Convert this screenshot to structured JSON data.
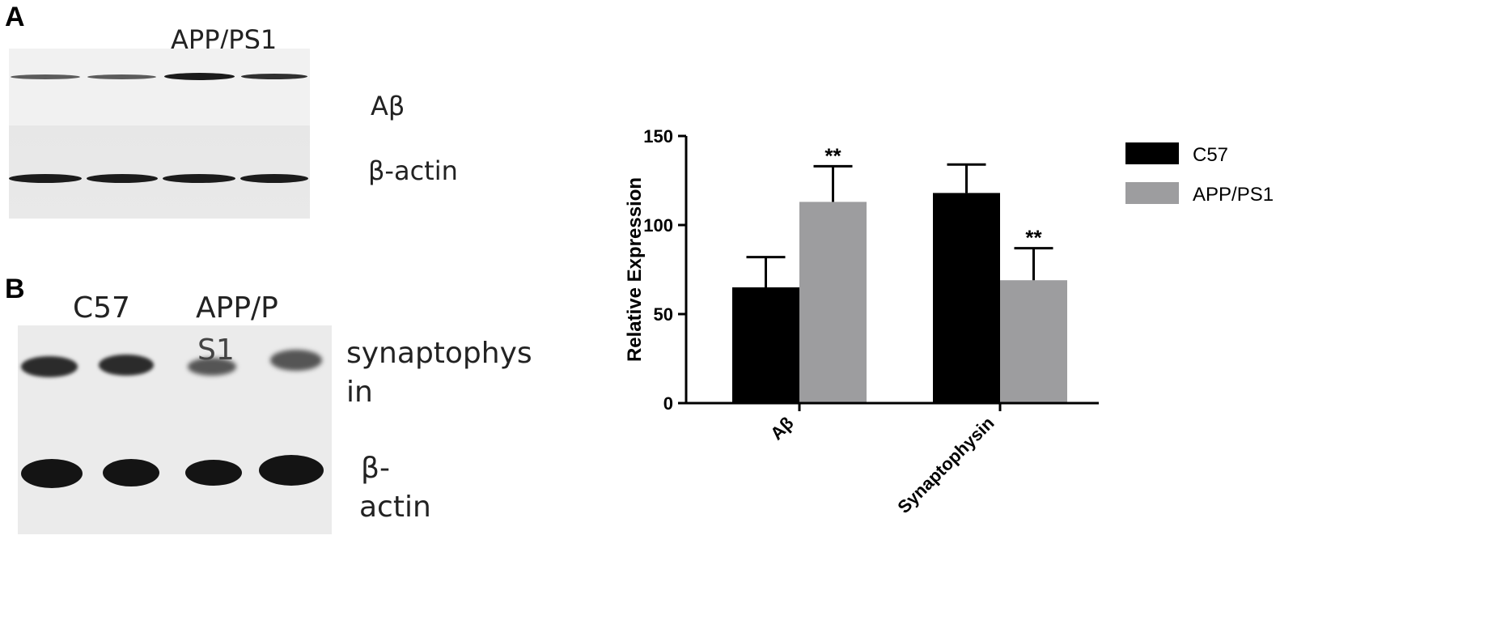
{
  "panels": {
    "a": {
      "letter": "A",
      "group_label": "APP/PS1",
      "band_labels": {
        "top": "Aβ",
        "bottom": "β-actin"
      }
    },
    "b": {
      "letter": "B",
      "group_labels": {
        "left": "C57",
        "right_line1": "APP/P",
        "right_line2": "S1"
      },
      "band_labels": {
        "top_line1": "synaptophys",
        "top_line2": "in",
        "bottom_line1": "β-",
        "bottom_line2": "actin"
      }
    }
  },
  "colors": {
    "c57": "#000000",
    "app": "#9d9d9f",
    "blot_bg": "#ececec",
    "band": "#1b1b1b"
  },
  "chart_data": {
    "type": "bar",
    "categories": [
      "Aβ",
      "Synaptophysin"
    ],
    "series": [
      {
        "name": "C57",
        "values": [
          65,
          118
        ],
        "errors": [
          17,
          16
        ],
        "significance": [
          "",
          ""
        ]
      },
      {
        "name": "APP/PS1",
        "values": [
          113,
          69
        ],
        "errors": [
          20,
          18
        ],
        "significance": [
          "**",
          "**"
        ]
      }
    ],
    "title": "",
    "xlabel": "",
    "ylabel": "Relative Expression",
    "ylim": [
      0,
      150
    ],
    "yticks": [
      0,
      50,
      100,
      150
    ],
    "legend": "right",
    "grid": false
  }
}
